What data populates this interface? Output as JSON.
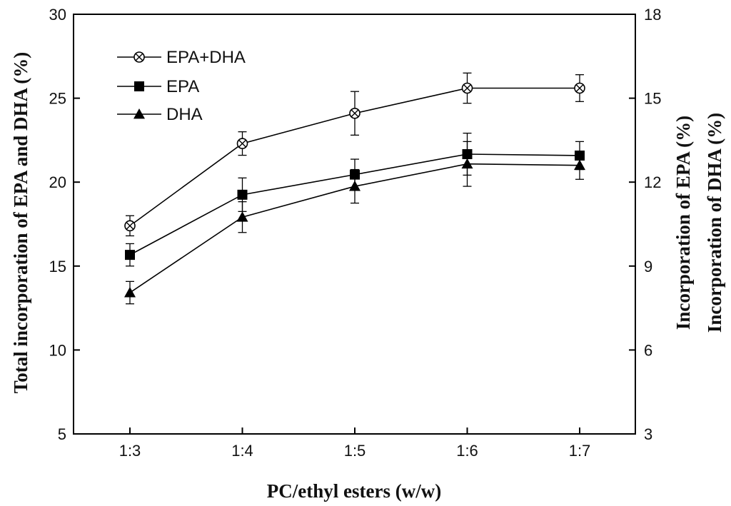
{
  "chart_data": {
    "type": "line",
    "categories": [
      "1:3",
      "1:4",
      "1:5",
      "1:6",
      "1:7"
    ],
    "xlabel": "PC/ethyl esters (w/w)",
    "ylabel_left": "Total incorporation of EPA and DHA (%)",
    "ylabel_right": [
      "Incorporation of EPA (%)",
      "Incorporation of DHA (%)"
    ],
    "ylim_left": [
      5,
      30
    ],
    "ylim_right": [
      3,
      18
    ],
    "yticks_left": [
      "5",
      "10",
      "15",
      "20",
      "25",
      "30"
    ],
    "yticks_right": [
      "3",
      "6",
      "9",
      "12",
      "15",
      "18"
    ],
    "grid": false,
    "legend_position": "top-left",
    "series": [
      {
        "name": "EPA+DHA",
        "axis": "left",
        "marker": "circle-x",
        "values": [
          17.4,
          22.3,
          24.1,
          25.6,
          25.6
        ],
        "errors": [
          0.6,
          0.7,
          1.3,
          0.9,
          0.8
        ]
      },
      {
        "name": "EPA",
        "axis": "right",
        "marker": "square",
        "values": [
          9.4,
          11.55,
          12.27,
          13.0,
          12.95
        ],
        "errors": [
          0.4,
          0.6,
          0.55,
          0.75,
          0.5
        ]
      },
      {
        "name": "DHA",
        "axis": "right",
        "marker": "triangle",
        "values": [
          8.05,
          10.75,
          11.85,
          12.65,
          12.6
        ],
        "errors": [
          0.4,
          0.55,
          0.6,
          0.8,
          0.5
        ]
      }
    ]
  }
}
